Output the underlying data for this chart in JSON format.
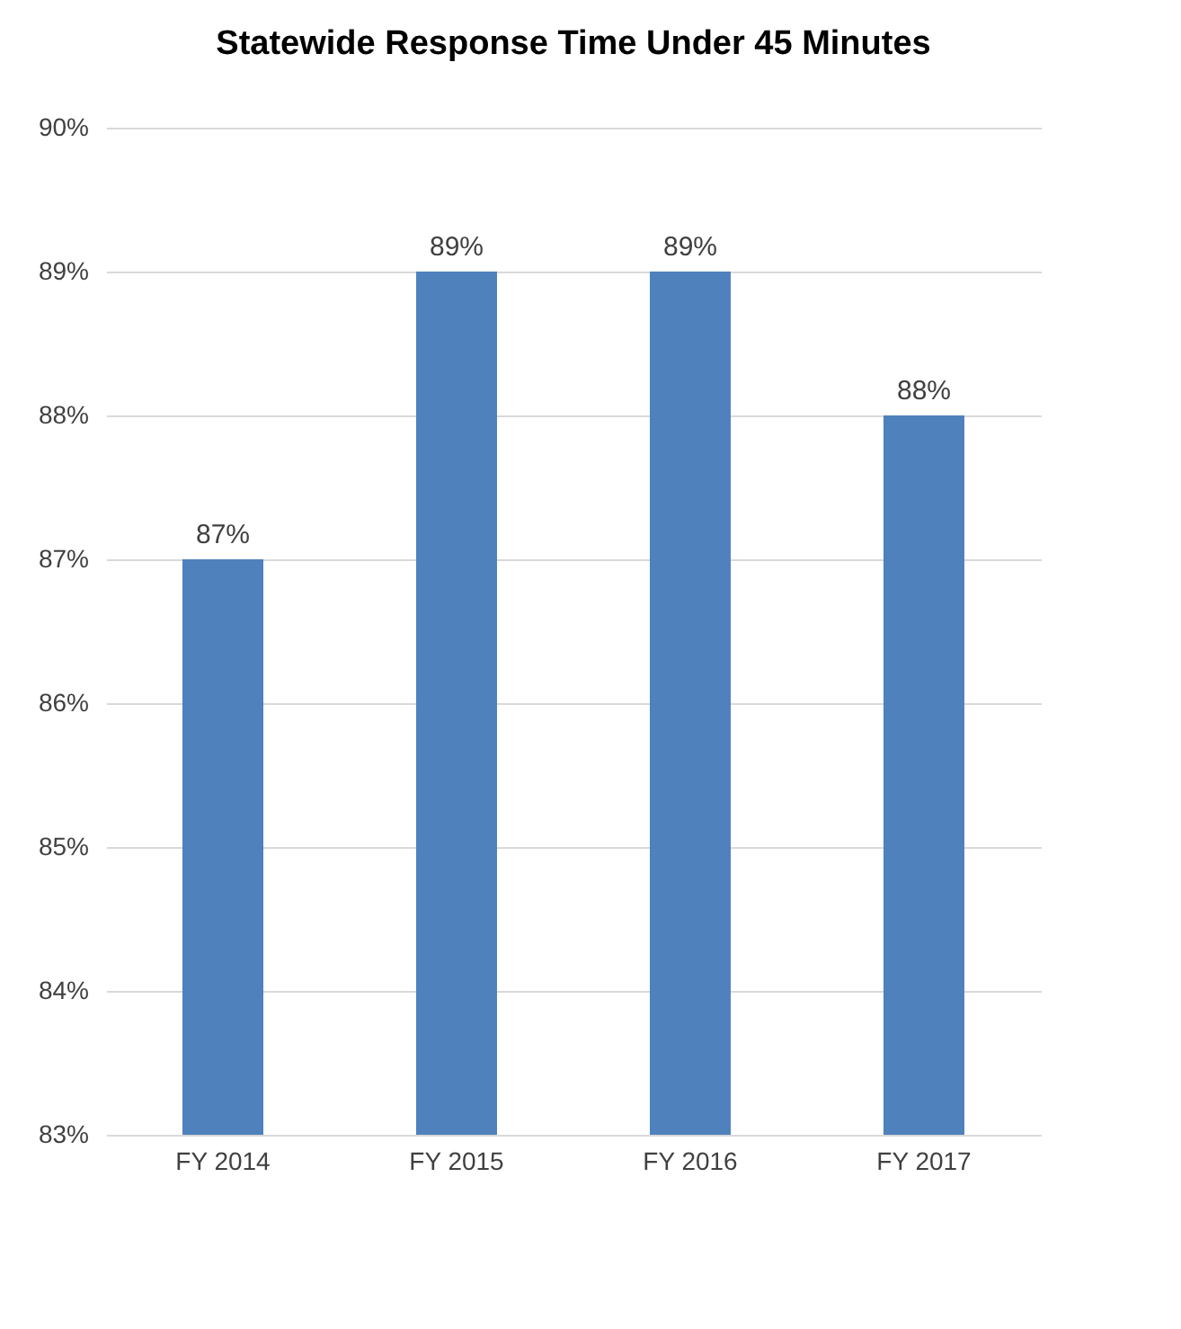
{
  "chart_data": {
    "type": "bar",
    "title": "Statewide Response Time Under 45 Minutes",
    "categories": [
      "FY 2014",
      "FY 2015",
      "FY 2016",
      "FY 2017"
    ],
    "values": [
      87,
      89,
      89,
      88
    ],
    "color": "#4f81bd",
    "ylim": [
      83,
      90
    ],
    "yticks": [
      {
        "value": 83,
        "label": "83%"
      },
      {
        "value": 84,
        "label": "84%"
      },
      {
        "value": 85,
        "label": "85%"
      },
      {
        "value": 86,
        "label": "86%"
      },
      {
        "value": 87,
        "label": "87%"
      },
      {
        "value": 88,
        "label": "88%"
      },
      {
        "value": 89,
        "label": "89%"
      },
      {
        "value": 90,
        "label": "90%"
      }
    ],
    "value_labels": [
      "87%",
      "89%",
      "89%",
      "88%"
    ],
    "grid": true
  }
}
